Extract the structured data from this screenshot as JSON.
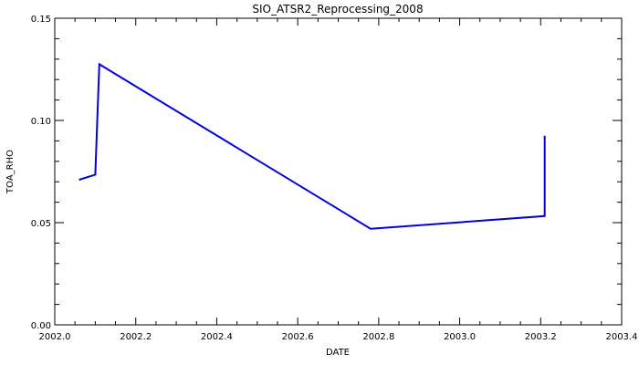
{
  "chart_data": {
    "type": "line",
    "title": "SIO_ATSR2_Reprocessing_2008",
    "xlabel": "DATE",
    "ylabel": "TOA_RHO",
    "xlim": [
      2002.0,
      2003.4
    ],
    "ylim": [
      0.0,
      0.15
    ],
    "xticks": [
      2002.0,
      2002.2,
      2002.4,
      2002.6,
      2002.8,
      2003.0,
      2003.2,
      2003.4
    ],
    "xtick_labels": [
      "2002.0",
      "2002.2",
      "2002.4",
      "2002.6",
      "2002.8",
      "2003.0",
      "2003.2",
      "2003.4"
    ],
    "yticks": [
      0.0,
      0.05,
      0.1,
      0.15
    ],
    "ytick_labels": [
      "0.00",
      "0.05",
      "0.10",
      "0.15"
    ],
    "grid": false,
    "series": [
      {
        "color": "#0000dd",
        "x": [
          2002.06,
          2002.1,
          2002.11,
          2002.78,
          2003.21,
          2003.21
        ],
        "y": [
          0.071,
          0.0735,
          0.1275,
          0.047,
          0.0532,
          0.0925
        ]
      }
    ]
  }
}
